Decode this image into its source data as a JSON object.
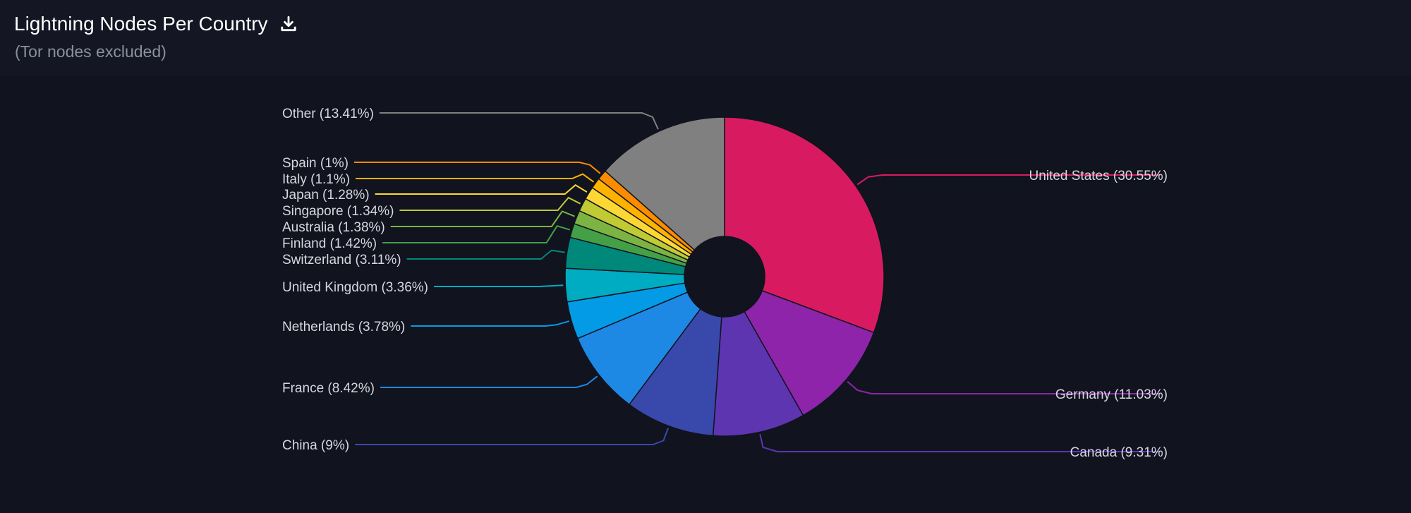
{
  "header": {
    "title": "Lightning Nodes Per Country",
    "subtitle": "(Tor nodes excluded)",
    "download_icon": "download-icon"
  },
  "chart_data": {
    "type": "pie",
    "donut": true,
    "start_angle": "top",
    "direction": "clockwise",
    "slices": [
      {
        "name": "United States",
        "label": "United States (30.55%)",
        "value": 30.55,
        "color": "#d81b60"
      },
      {
        "name": "Germany",
        "label": "Germany (11.03%)",
        "value": 11.03,
        "color": "#8e24aa"
      },
      {
        "name": "Canada",
        "label": "Canada (9.31%)",
        "value": 9.31,
        "color": "#5e35b1"
      },
      {
        "name": "China",
        "label": "China (9%)",
        "value": 9.0,
        "color": "#3949ab"
      },
      {
        "name": "France",
        "label": "France (8.42%)",
        "value": 8.42,
        "color": "#1e88e5"
      },
      {
        "name": "Netherlands",
        "label": "Netherlands (3.78%)",
        "value": 3.78,
        "color": "#039be5"
      },
      {
        "name": "United Kingdom",
        "label": "United Kingdom (3.36%)",
        "value": 3.36,
        "color": "#00acc1"
      },
      {
        "name": "Switzerland",
        "label": "Switzerland (3.11%)",
        "value": 3.11,
        "color": "#00897b"
      },
      {
        "name": "Finland",
        "label": "Finland (1.42%)",
        "value": 1.42,
        "color": "#43a047"
      },
      {
        "name": "Australia",
        "label": "Australia (1.38%)",
        "value": 1.38,
        "color": "#7cb342"
      },
      {
        "name": "Singapore",
        "label": "Singapore (1.34%)",
        "value": 1.34,
        "color": "#c0ca33"
      },
      {
        "name": "Japan",
        "label": "Japan (1.28%)",
        "value": 1.28,
        "color": "#fdd835"
      },
      {
        "name": "Italy",
        "label": "Italy (1.1%)",
        "value": 1.1,
        "color": "#ffb300"
      },
      {
        "name": "Spain",
        "label": "Spain (1%)",
        "value": 1.0,
        "color": "#fb8c00"
      },
      {
        "name": "Other",
        "label": "Other (13.41%)",
        "value": 13.41,
        "color": "#808080"
      }
    ]
  }
}
